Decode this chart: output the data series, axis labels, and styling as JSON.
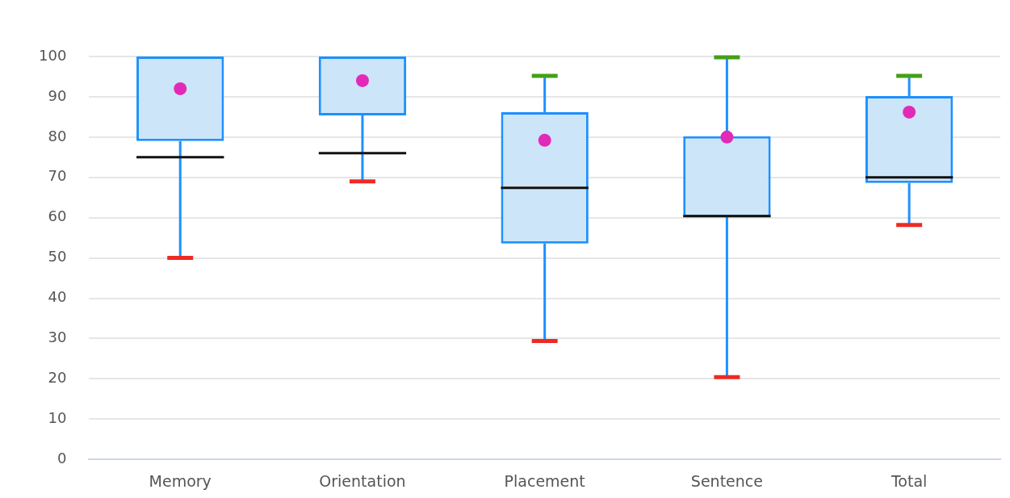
{
  "chart_data": {
    "type": "box",
    "categories": [
      "Memory",
      "Orientation",
      "Placement",
      "Sentence",
      "Total"
    ],
    "series": [
      {
        "color": "#1e90ff",
        "boxes": [
          {
            "low": 50,
            "q1": 79,
            "median": 75,
            "q3": 100,
            "high": 100,
            "mean": 92
          },
          {
            "low": 69,
            "q1": 85.4,
            "median": 76,
            "q3": 100,
            "high": 100,
            "mean": 94
          },
          {
            "low": 29.4,
            "q1": 53.6,
            "median": 67.4,
            "q3": 86.2,
            "high": 95.2,
            "mean": 79.2
          },
          {
            "low": 20.4,
            "q1": 60.2,
            "median": 60.4,
            "q3": 80.2,
            "high": 99.8,
            "mean": 80
          },
          {
            "low": 58.2,
            "q1": 68.6,
            "median": 70,
            "q3": 90.2,
            "high": 95.2,
            "mean": 86.2
          }
        ]
      }
    ],
    "ylim": [
      0,
      100
    ],
    "yticks": [
      0,
      10,
      20,
      30,
      40,
      50,
      60,
      70,
      80,
      90,
      100
    ],
    "grid": "y",
    "legend": false
  }
}
